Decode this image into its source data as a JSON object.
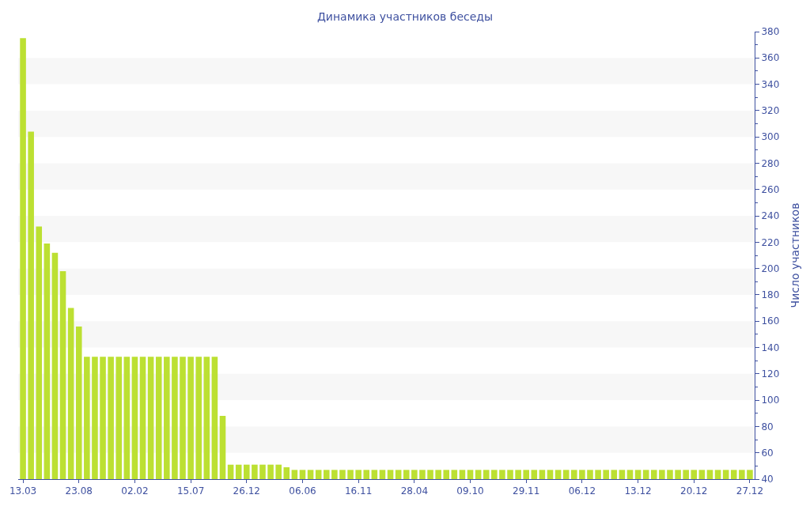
{
  "chart_data": {
    "type": "bar",
    "title": "Динамика участников беседы",
    "y2label": "Число участников",
    "categories": [
      "13.03",
      null,
      null,
      null,
      null,
      null,
      null,
      "23.08",
      null,
      null,
      null,
      null,
      null,
      null,
      "02.02",
      null,
      null,
      null,
      null,
      null,
      null,
      "15.07",
      null,
      null,
      null,
      null,
      null,
      null,
      "26.12",
      null,
      null,
      null,
      null,
      null,
      null,
      "06.06",
      null,
      null,
      null,
      null,
      null,
      null,
      "16.11",
      null,
      null,
      null,
      null,
      null,
      null,
      "28.04",
      null,
      null,
      null,
      null,
      null,
      null,
      "09.10",
      null,
      null,
      null,
      null,
      null,
      null,
      "29.11",
      null,
      null,
      null,
      null,
      null,
      null,
      "06.12",
      null,
      null,
      null,
      null,
      null,
      null,
      "13.12",
      null,
      null,
      null,
      null,
      null,
      null,
      "20.12",
      null,
      null,
      null,
      null,
      null,
      null,
      "27.12"
    ],
    "series": [
      {
        "color": "#bce032",
        "axis": "y2",
        "values": [
          375,
          304,
          232,
          219,
          212,
          198,
          170,
          156,
          133,
          133,
          133,
          133,
          133,
          133,
          133,
          133,
          133,
          133,
          133,
          133,
          133,
          133,
          133,
          133,
          133,
          88,
          51,
          51,
          51,
          51,
          51,
          51,
          51,
          49,
          47,
          47,
          47,
          47,
          47,
          47,
          47,
          47,
          47,
          47,
          47,
          47,
          47,
          47,
          47,
          47,
          47,
          47,
          47,
          47,
          47,
          47,
          47,
          47,
          47,
          47,
          47,
          47,
          47,
          47,
          47,
          47,
          47,
          47,
          47,
          47,
          47,
          47,
          47,
          47,
          47,
          47,
          47,
          47,
          47,
          47,
          47,
          47,
          47,
          47,
          47,
          47,
          47,
          47,
          47,
          47,
          47,
          47
        ]
      }
    ],
    "y2lim": [
      40,
      380
    ],
    "y2ticks": [
      40,
      60,
      80,
      100,
      120,
      140,
      160,
      180,
      200,
      220,
      240,
      260,
      280,
      300,
      320,
      340,
      360,
      380
    ],
    "bands": [
      {
        "axis": "y2",
        "from": 60,
        "to": 80,
        "color": "#f7f7f7"
      },
      {
        "axis": "y2",
        "from": 100,
        "to": 120,
        "color": "#f7f7f7"
      },
      {
        "axis": "y2",
        "from": 140,
        "to": 160,
        "color": "#f7f7f7"
      },
      {
        "axis": "y2",
        "from": 180,
        "to": 200,
        "color": "#f7f7f7"
      },
      {
        "axis": "y2",
        "from": 220,
        "to": 240,
        "color": "#f7f7f7"
      },
      {
        "axis": "y2",
        "from": 260,
        "to": 280,
        "color": "#f7f7f7"
      },
      {
        "axis": "y2",
        "from": 300,
        "to": 320,
        "color": "#f7f7f7"
      },
      {
        "axis": "y2",
        "from": 340,
        "to": 360,
        "color": "#f7f7f7"
      }
    ]
  }
}
